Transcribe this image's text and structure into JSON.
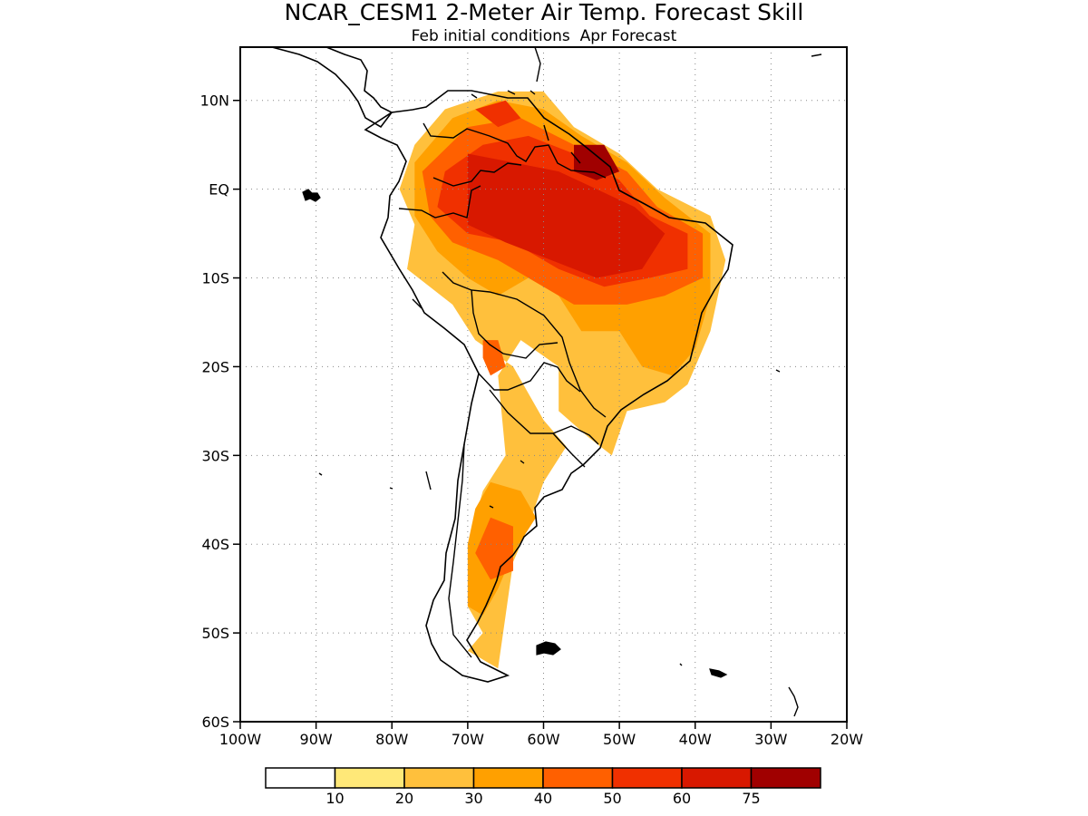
{
  "title": "NCAR_CESM1 2-Meter Air Temp. Forecast Skill",
  "subtitle": "Feb initial conditions  Apr Forecast",
  "lat_ticks": [
    {
      "lat": 10,
      "label": "10N"
    },
    {
      "lat": 0,
      "label": "EQ"
    },
    {
      "lat": -10,
      "label": "10S"
    },
    {
      "lat": -20,
      "label": "20S"
    },
    {
      "lat": -30,
      "label": "30S"
    },
    {
      "lat": -40,
      "label": "40S"
    },
    {
      "lat": -50,
      "label": "50S"
    },
    {
      "lat": -60,
      "label": "60S"
    }
  ],
  "lon_ticks": [
    {
      "lon": -100,
      "label": "100W"
    },
    {
      "lon": -90,
      "label": "90W"
    },
    {
      "lon": -80,
      "label": "80W"
    },
    {
      "lon": -70,
      "label": "70W"
    },
    {
      "lon": -60,
      "label": "60W"
    },
    {
      "lon": -50,
      "label": "50W"
    },
    {
      "lon": -40,
      "label": "40W"
    },
    {
      "lon": -30,
      "label": "30W"
    },
    {
      "lon": -20,
      "label": "20W"
    }
  ],
  "extent": {
    "lon_min": -100,
    "lon_max": -20,
    "lat_min": -60,
    "lat_max": 16
  },
  "legend": {
    "colors": [
      "#ffffff",
      "#ffe878",
      "#ffc03c",
      "#ffa000",
      "#ff6000",
      "#f03000",
      "#d81800",
      "#a00000"
    ],
    "labels": [
      "10",
      "20",
      "30",
      "40",
      "50",
      "60",
      "75"
    ]
  },
  "skill_regions": [
    {
      "level": 2,
      "points": [
        [
          -73,
          9
        ],
        [
          -66,
          11
        ],
        [
          -60,
          11
        ],
        [
          -56,
          7
        ],
        [
          -50,
          4
        ],
        [
          -45,
          0
        ],
        [
          -38,
          -3
        ],
        [
          -36,
          -8
        ],
        [
          -38,
          -16
        ],
        [
          -41,
          -22
        ],
        [
          -44,
          -24
        ],
        [
          -49,
          -25
        ],
        [
          -51,
          -30
        ],
        [
          -54,
          -28
        ],
        [
          -58,
          -25
        ],
        [
          -58,
          -20
        ],
        [
          -63,
          -17
        ],
        [
          -66,
          -21
        ],
        [
          -65,
          -30
        ],
        [
          -68,
          -34
        ],
        [
          -70,
          -40
        ],
        [
          -70,
          -47
        ],
        [
          -68,
          -50
        ],
        [
          -70,
          -52
        ],
        [
          -66,
          -54
        ],
        [
          -65,
          -48
        ],
        [
          -64,
          -42
        ],
        [
          -62,
          -38
        ],
        [
          -60,
          -33
        ],
        [
          -57,
          -29
        ],
        [
          -60,
          -26
        ],
        [
          -64,
          -20
        ],
        [
          -69,
          -17
        ],
        [
          -72,
          -13
        ],
        [
          -78,
          -9
        ],
        [
          -77,
          -4
        ],
        [
          -79,
          0
        ],
        [
          -77,
          5
        ]
      ]
    },
    {
      "level": 3,
      "points": [
        [
          -72,
          8
        ],
        [
          -66,
          10
        ],
        [
          -60,
          9
        ],
        [
          -55,
          6
        ],
        [
          -49,
          3
        ],
        [
          -44,
          -1
        ],
        [
          -38,
          -5
        ],
        [
          -38,
          -12
        ],
        [
          -40,
          -18
        ],
        [
          -43,
          -21
        ],
        [
          -47,
          -20
        ],
        [
          -50,
          -16
        ],
        [
          -55,
          -16
        ],
        [
          -58,
          -12
        ],
        [
          -62,
          -10
        ],
        [
          -66,
          -12
        ],
        [
          -70,
          -10
        ],
        [
          -74,
          -7
        ],
        [
          -77,
          -3
        ],
        [
          -77,
          3
        ]
      ]
    },
    {
      "level": 3,
      "points": [
        [
          -67,
          -33
        ],
        [
          -63,
          -34
        ],
        [
          -61,
          -37
        ],
        [
          -64,
          -41
        ],
        [
          -66,
          -45
        ],
        [
          -68,
          -48
        ],
        [
          -70,
          -47
        ],
        [
          -70,
          -40
        ],
        [
          -69,
          -36
        ]
      ]
    },
    {
      "level": 4,
      "points": [
        [
          -70,
          7
        ],
        [
          -63,
          8
        ],
        [
          -56,
          5
        ],
        [
          -49,
          2
        ],
        [
          -45,
          -2
        ],
        [
          -39,
          -5
        ],
        [
          -39,
          -10
        ],
        [
          -44,
          -12
        ],
        [
          -49,
          -13
        ],
        [
          -56,
          -13
        ],
        [
          -60,
          -11
        ],
        [
          -66,
          -8
        ],
        [
          -72,
          -6
        ],
        [
          -75,
          -3
        ],
        [
          -76,
          2
        ]
      ]
    },
    {
      "level": 4,
      "points": [
        [
          -67,
          -37
        ],
        [
          -64,
          -38
        ],
        [
          -64,
          -43
        ],
        [
          -67,
          -44
        ],
        [
          -69,
          -41
        ]
      ]
    },
    {
      "level": 4,
      "points": [
        [
          -68,
          -17
        ],
        [
          -66,
          -17
        ],
        [
          -65,
          -20
        ],
        [
          -67,
          -21
        ],
        [
          -68,
          -19
        ]
      ]
    },
    {
      "level": 5,
      "points": [
        [
          -68,
          5
        ],
        [
          -62,
          6
        ],
        [
          -56,
          4
        ],
        [
          -50,
          1
        ],
        [
          -46,
          -3
        ],
        [
          -41,
          -5
        ],
        [
          -41,
          -9
        ],
        [
          -46,
          -10
        ],
        [
          -52,
          -11
        ],
        [
          -58,
          -9
        ],
        [
          -64,
          -6
        ],
        [
          -70,
          -5
        ],
        [
          -74,
          -2
        ],
        [
          -73,
          2
        ]
      ]
    },
    {
      "level": 5,
      "points": [
        [
          -69,
          9
        ],
        [
          -65,
          10
        ],
        [
          -63,
          8
        ],
        [
          -66,
          7
        ]
      ]
    },
    {
      "level": 6,
      "points": [
        [
          -70,
          4
        ],
        [
          -64,
          3
        ],
        [
          -58,
          2
        ],
        [
          -53,
          0
        ],
        [
          -48,
          -2
        ],
        [
          -44,
          -5
        ],
        [
          -47,
          -9
        ],
        [
          -53,
          -10
        ],
        [
          -59,
          -8
        ],
        [
          -65,
          -6
        ],
        [
          -70,
          -4
        ]
      ]
    },
    {
      "level": 7,
      "points": [
        [
          -56,
          5
        ],
        [
          -52,
          5
        ],
        [
          -50,
          2
        ],
        [
          -53,
          1
        ],
        [
          -56,
          2
        ]
      ]
    }
  ]
}
